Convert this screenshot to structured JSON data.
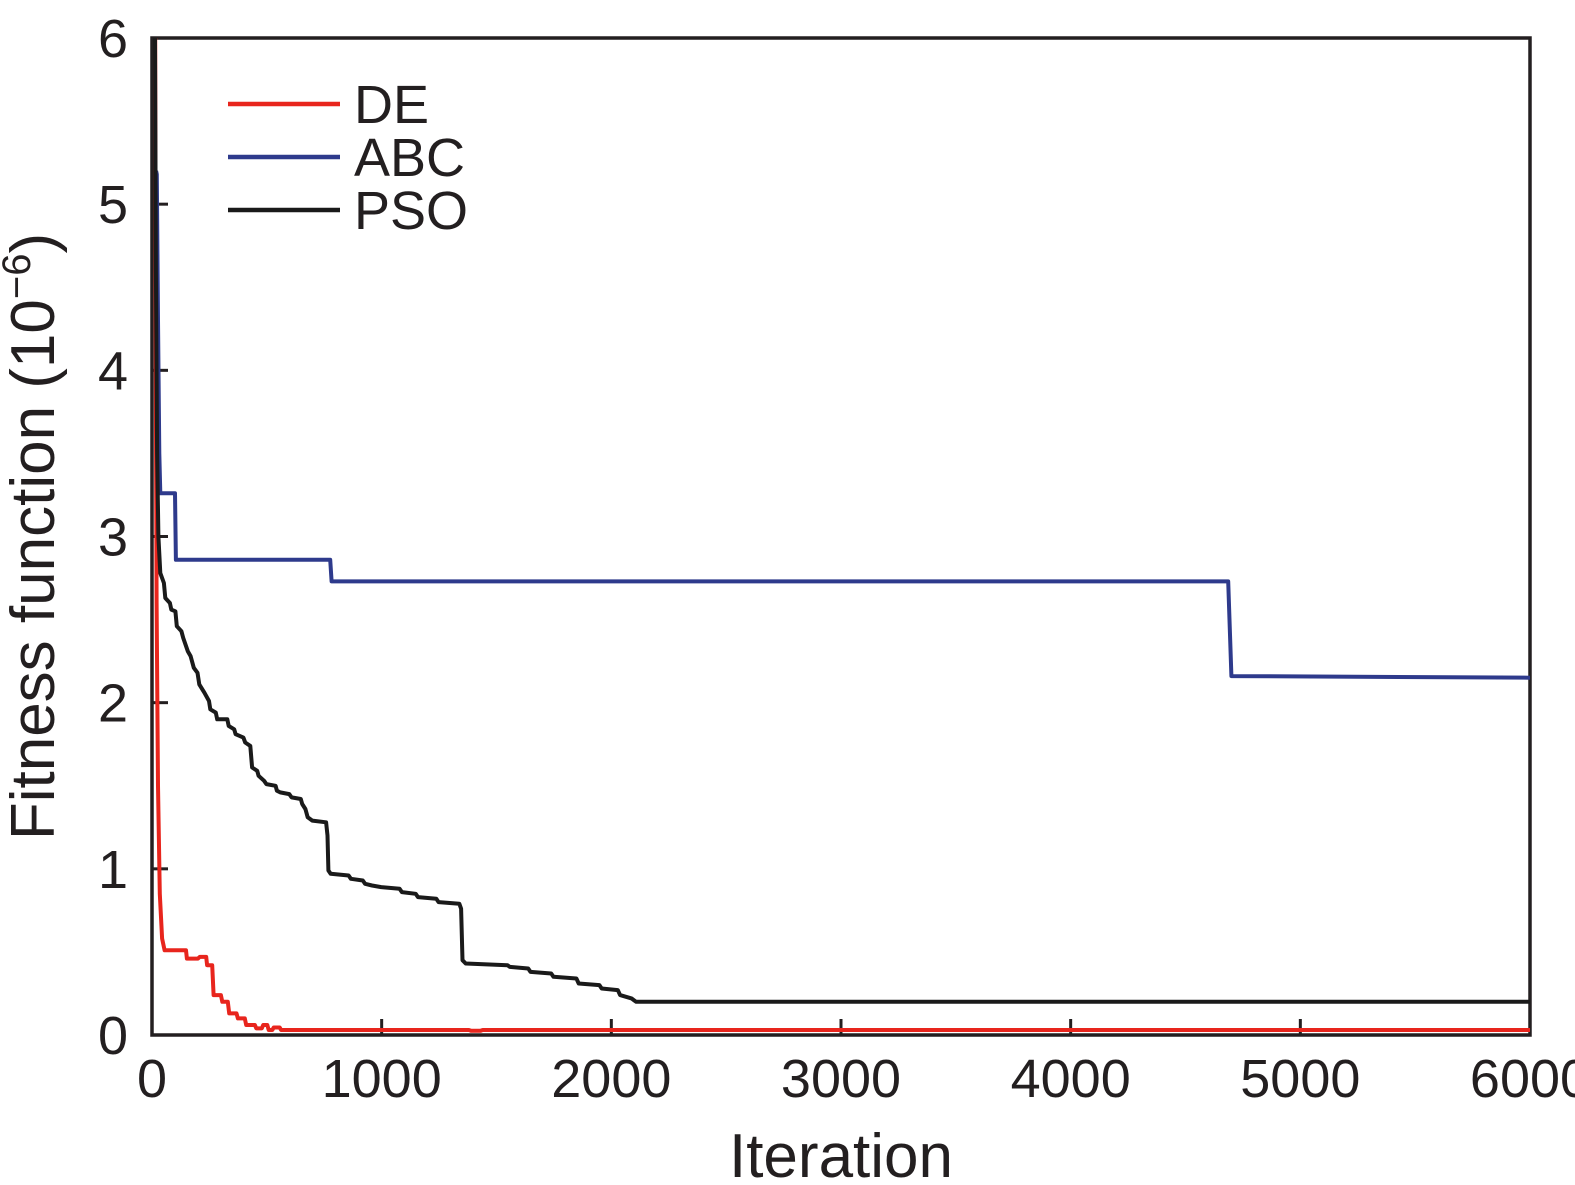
{
  "figure": {
    "background": "#ffffff",
    "ink_color": "#231f20"
  },
  "chart_data": {
    "type": "line",
    "title": "",
    "xlabel": "Iteration",
    "ylabel": "Fitness function (10⁻⁶)",
    "ylabel_parts": {
      "main": "Fitness function (10",
      "exp": "−6",
      "close": ")"
    },
    "xlim": [
      0,
      6000
    ],
    "ylim": [
      0,
      6
    ],
    "xticks": [
      0,
      1000,
      2000,
      3000,
      4000,
      5000,
      6000
    ],
    "yticks": [
      0,
      1,
      2,
      3,
      4,
      5,
      6
    ],
    "grid": false,
    "legend_position": "upper-left",
    "series": [
      {
        "name": "DE",
        "color": "#e8251d",
        "points": [
          [
            14,
            6
          ],
          [
            16,
            4.2
          ],
          [
            20,
            2.6
          ],
          [
            26,
            1.5
          ],
          [
            34,
            0.85
          ],
          [
            44,
            0.58
          ],
          [
            55,
            0.51
          ],
          [
            148,
            0.51
          ],
          [
            152,
            0.46
          ],
          [
            200,
            0.46
          ],
          [
            208,
            0.47
          ],
          [
            236,
            0.47
          ],
          [
            240,
            0.42
          ],
          [
            262,
            0.42
          ],
          [
            268,
            0.24
          ],
          [
            300,
            0.24
          ],
          [
            306,
            0.2
          ],
          [
            330,
            0.2
          ],
          [
            336,
            0.13
          ],
          [
            368,
            0.13
          ],
          [
            374,
            0.1
          ],
          [
            404,
            0.1
          ],
          [
            410,
            0.06
          ],
          [
            448,
            0.06
          ],
          [
            454,
            0.04
          ],
          [
            478,
            0.04
          ],
          [
            484,
            0.06
          ],
          [
            502,
            0.06
          ],
          [
            508,
            0.03
          ],
          [
            524,
            0.03
          ],
          [
            530,
            0.045
          ],
          [
            556,
            0.045
          ],
          [
            562,
            0.03
          ],
          [
            1380,
            0.03
          ],
          [
            1390,
            0.025
          ],
          [
            1430,
            0.025
          ],
          [
            1440,
            0.03
          ],
          [
            6000,
            0.03
          ]
        ]
      },
      {
        "name": "ABC",
        "color": "#2e3a8c",
        "points": [
          [
            18,
            5.2
          ],
          [
            21,
            5.18
          ],
          [
            26,
            4.3
          ],
          [
            32,
            3.5
          ],
          [
            36,
            3.26
          ],
          [
            100,
            3.26
          ],
          [
            104,
            2.86
          ],
          [
            776,
            2.86
          ],
          [
            782,
            2.73
          ],
          [
            4686,
            2.73
          ],
          [
            4700,
            2.16
          ],
          [
            6000,
            2.15
          ]
        ]
      },
      {
        "name": "PSO",
        "color": "#1a1a1a",
        "points": [
          [
            13,
            6
          ],
          [
            17,
            4.6
          ],
          [
            22,
            3.5
          ],
          [
            28,
            3.0
          ],
          [
            36,
            2.78
          ],
          [
            52,
            2.72
          ],
          [
            58,
            2.63
          ],
          [
            78,
            2.6
          ],
          [
            84,
            2.56
          ],
          [
            102,
            2.55
          ],
          [
            108,
            2.46
          ],
          [
            128,
            2.43
          ],
          [
            136,
            2.39
          ],
          [
            156,
            2.31
          ],
          [
            168,
            2.28
          ],
          [
            182,
            2.21
          ],
          [
            198,
            2.18
          ],
          [
            206,
            2.11
          ],
          [
            228,
            2.06
          ],
          [
            248,
            2.01
          ],
          [
            254,
            1.96
          ],
          [
            278,
            1.94
          ],
          [
            284,
            1.9
          ],
          [
            328,
            1.9
          ],
          [
            334,
            1.86
          ],
          [
            358,
            1.84
          ],
          [
            364,
            1.81
          ],
          [
            398,
            1.79
          ],
          [
            406,
            1.76
          ],
          [
            428,
            1.74
          ],
          [
            436,
            1.61
          ],
          [
            458,
            1.59
          ],
          [
            464,
            1.56
          ],
          [
            488,
            1.53
          ],
          [
            498,
            1.51
          ],
          [
            538,
            1.5
          ],
          [
            544,
            1.47
          ],
          [
            558,
            1.46
          ],
          [
            598,
            1.45
          ],
          [
            608,
            1.43
          ],
          [
            648,
            1.42
          ],
          [
            654,
            1.39
          ],
          [
            668,
            1.36
          ],
          [
            678,
            1.31
          ],
          [
            698,
            1.29
          ],
          [
            758,
            1.28
          ],
          [
            764,
            1.2
          ],
          [
            768,
            0.99
          ],
          [
            778,
            0.97
          ],
          [
            856,
            0.96
          ],
          [
            866,
            0.94
          ],
          [
            918,
            0.93
          ],
          [
            928,
            0.91
          ],
          [
            958,
            0.9
          ],
          [
            998,
            0.89
          ],
          [
            1078,
            0.88
          ],
          [
            1088,
            0.86
          ],
          [
            1148,
            0.85
          ],
          [
            1158,
            0.83
          ],
          [
            1238,
            0.82
          ],
          [
            1248,
            0.8
          ],
          [
            1338,
            0.79
          ],
          [
            1346,
            0.76
          ],
          [
            1352,
            0.45
          ],
          [
            1366,
            0.43
          ],
          [
            1548,
            0.42
          ],
          [
            1558,
            0.41
          ],
          [
            1638,
            0.4
          ],
          [
            1648,
            0.38
          ],
          [
            1738,
            0.37
          ],
          [
            1748,
            0.35
          ],
          [
            1848,
            0.34
          ],
          [
            1858,
            0.31
          ],
          [
            1948,
            0.3
          ],
          [
            1958,
            0.28
          ],
          [
            2028,
            0.27
          ],
          [
            2038,
            0.24
          ],
          [
            2088,
            0.22
          ],
          [
            2098,
            0.21
          ],
          [
            2108,
            0.2
          ],
          [
            6000,
            0.2
          ]
        ]
      }
    ]
  }
}
